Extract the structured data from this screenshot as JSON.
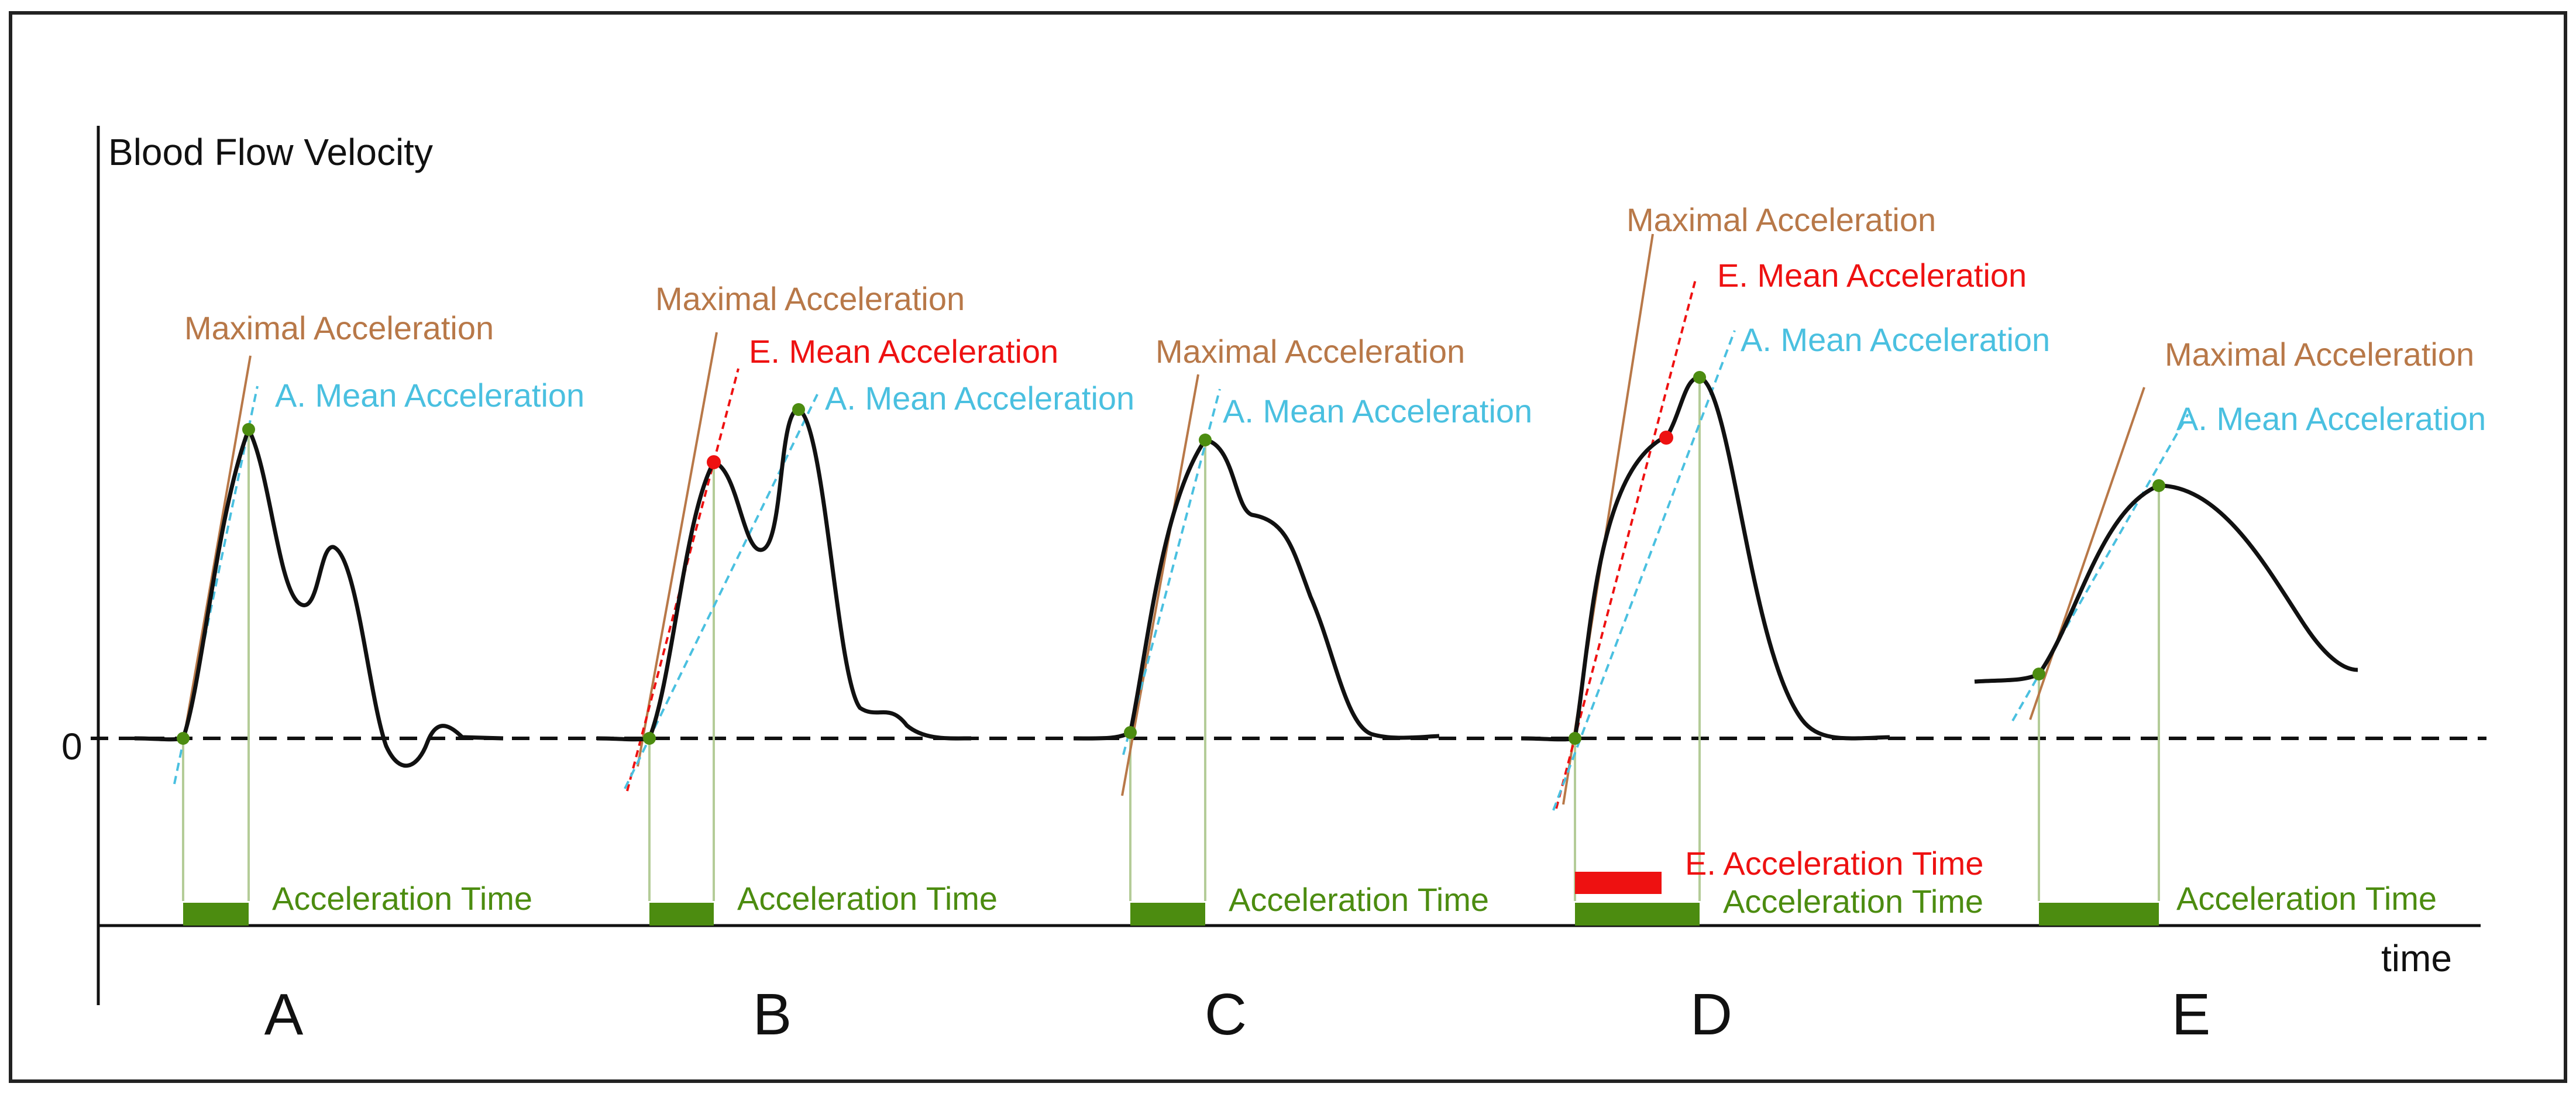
{
  "axes": {
    "y_label": "Blood Flow Velocity",
    "x_label": "time",
    "zero_label": "0"
  },
  "colors": {
    "max_accel": "#b87848",
    "e_mean": "#ee1111",
    "a_mean": "#4ac0e0",
    "green": "#4c8c10",
    "curve": "#111111",
    "guide": "#b4cc98"
  },
  "panels": [
    {
      "letter": "A",
      "max_label": "Maximal Acceleration",
      "a_mean_label": "A. Mean Acceleration",
      "accel_time_label": "Acceleration Time"
    },
    {
      "letter": "B",
      "max_label": "Maximal Acceleration",
      "e_mean_label": "E. Mean Acceleration",
      "a_mean_label": "A. Mean Acceleration",
      "accel_time_label": "Acceleration Time"
    },
    {
      "letter": "C",
      "max_label": "Maximal Acceleration",
      "a_mean_label": "A. Mean Acceleration",
      "accel_time_label": "Acceleration Time"
    },
    {
      "letter": "D",
      "max_label": "Maximal Acceleration",
      "e_mean_label": "E. Mean Acceleration",
      "a_mean_label": "A. Mean Acceleration",
      "e_accel_time_label": "E. Acceleration Time",
      "accel_time_label": "Acceleration Time"
    },
    {
      "letter": "E",
      "max_label": "Maximal Acceleration",
      "a_mean_label": "A. Mean Acceleration",
      "accel_time_label": "Acceleration Time"
    }
  ]
}
